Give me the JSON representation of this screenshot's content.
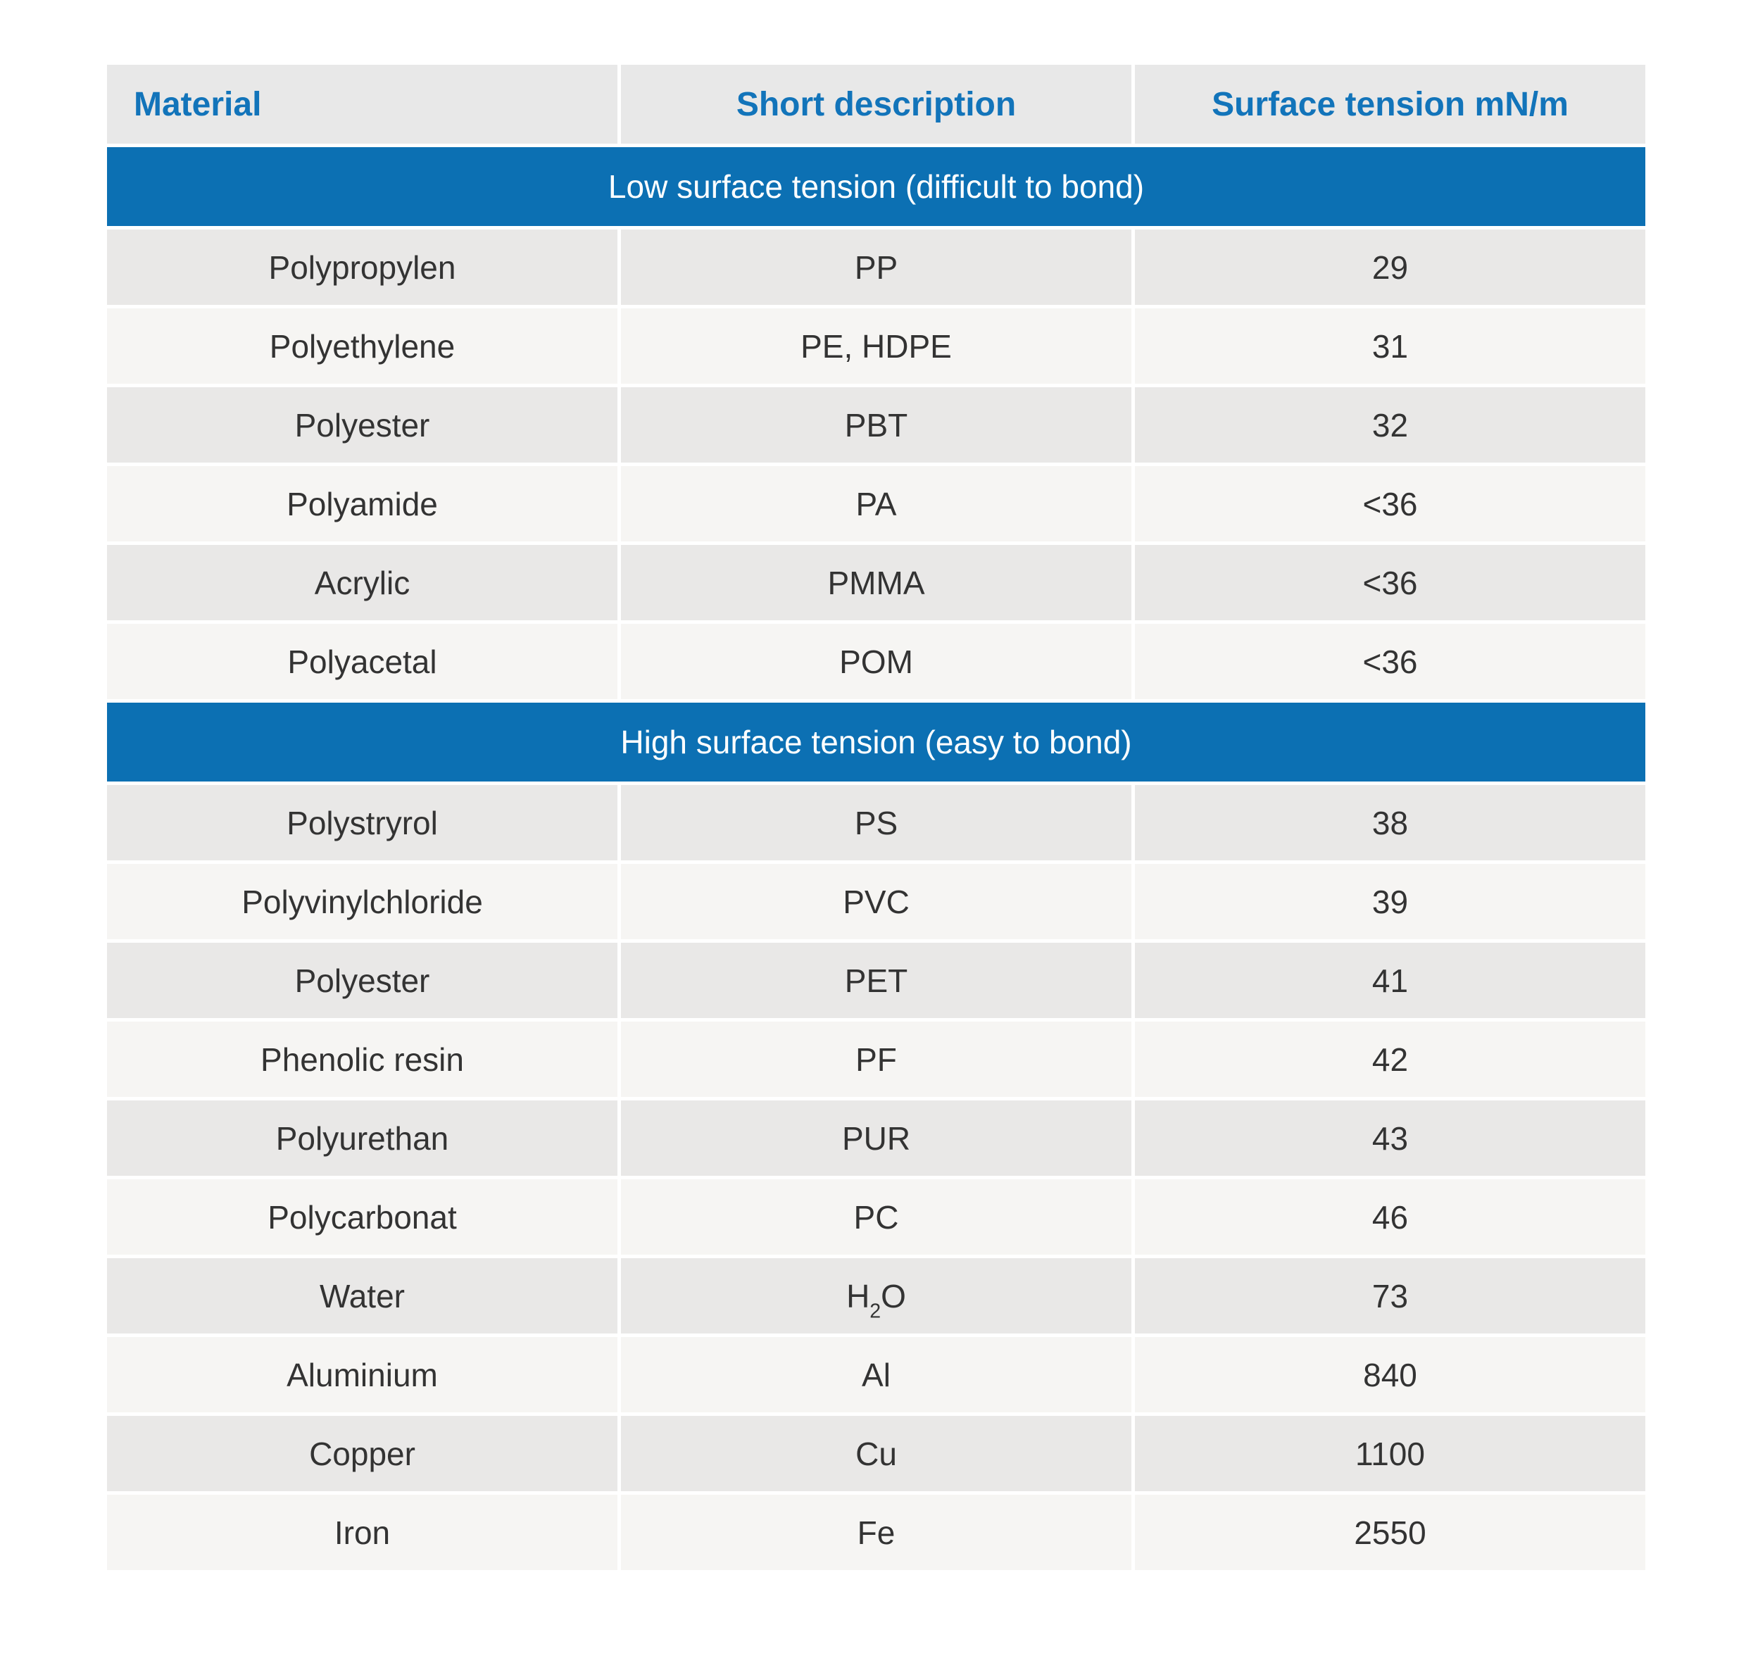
{
  "chart_data": {
    "type": "table",
    "columns": [
      "Material",
      "Short description",
      "Surface tension mN/m"
    ],
    "sections": [
      {
        "header": "Low surface tension (difficult to bond)",
        "rows": [
          [
            "Polypropylen",
            "PP",
            "29"
          ],
          [
            "Polyethylene",
            "PE, HDPE",
            "31"
          ],
          [
            "Polyester",
            "PBT",
            "32"
          ],
          [
            "Polyamide",
            "PA",
            "<36"
          ],
          [
            "Acrylic",
            "PMMA",
            "<36"
          ],
          [
            "Polyacetal",
            "POM",
            "<36"
          ]
        ]
      },
      {
        "header": "High surface tension (easy to bond)",
        "rows": [
          [
            "Polystryrol",
            "PS",
            "38"
          ],
          [
            "Polyvinylchloride",
            "PVC",
            "39"
          ],
          [
            "Polyester",
            "PET",
            "41"
          ],
          [
            "Phenolic resin",
            "PF",
            "42"
          ],
          [
            "Polyurethan",
            "PUR",
            "43"
          ],
          [
            "Polycarbonat",
            "PC",
            "46"
          ],
          [
            "Water",
            "H₂O",
            "73"
          ],
          [
            "Aluminium",
            "Al",
            "840"
          ],
          [
            "Copper",
            "Cu",
            "1100"
          ],
          [
            "Iron",
            "Fe",
            "2550"
          ]
        ]
      }
    ]
  },
  "colors": {
    "header_background": "#e8e8e8",
    "header_text": "#1274ba",
    "band_background": "#0c70b3",
    "band_text": "#ffffff",
    "row_dark": "#e9e8e7",
    "row_light": "#f6f5f3",
    "body_text": "#333333"
  }
}
